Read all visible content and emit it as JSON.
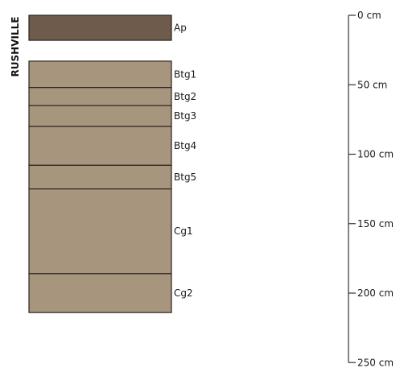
{
  "series_name": "RUSHVILLE",
  "colors": {
    "surface_horizon": "#6e5b4c",
    "subsoil_horizon": "#a8957e",
    "boundary_line": "#2a241f",
    "scale_line": "#333333"
  },
  "horizons": [
    {
      "name": "Ap",
      "top_cm": 0,
      "bottom_cm": 18,
      "color": "#6e5b4c"
    },
    {
      "name": "Btg1",
      "top_cm": 33,
      "bottom_cm": 52,
      "color": "#a8957e"
    },
    {
      "name": "Btg2",
      "top_cm": 52,
      "bottom_cm": 65,
      "color": "#a8957e"
    },
    {
      "name": "Btg3",
      "top_cm": 65,
      "bottom_cm": 80,
      "color": "#a8957e"
    },
    {
      "name": "Btg4",
      "top_cm": 80,
      "bottom_cm": 108,
      "color": "#a8957e"
    },
    {
      "name": "Btg5",
      "top_cm": 108,
      "bottom_cm": 125,
      "color": "#a8957e"
    },
    {
      "name": "Cg1",
      "top_cm": 125,
      "bottom_cm": 186,
      "color": "#a8957e"
    },
    {
      "name": "Cg2",
      "top_cm": 186,
      "bottom_cm": 214,
      "color": "#a8957e"
    }
  ],
  "depth_scale": {
    "min_cm": 0,
    "max_cm": 250,
    "ticks": [
      {
        "value": 0,
        "label": "0 cm"
      },
      {
        "value": 50,
        "label": "50 cm"
      },
      {
        "value": 100,
        "label": "100 cm"
      },
      {
        "value": 150,
        "label": "150 cm"
      },
      {
        "value": 200,
        "label": "200 cm"
      },
      {
        "value": 250,
        "label": "250 cm"
      }
    ]
  }
}
